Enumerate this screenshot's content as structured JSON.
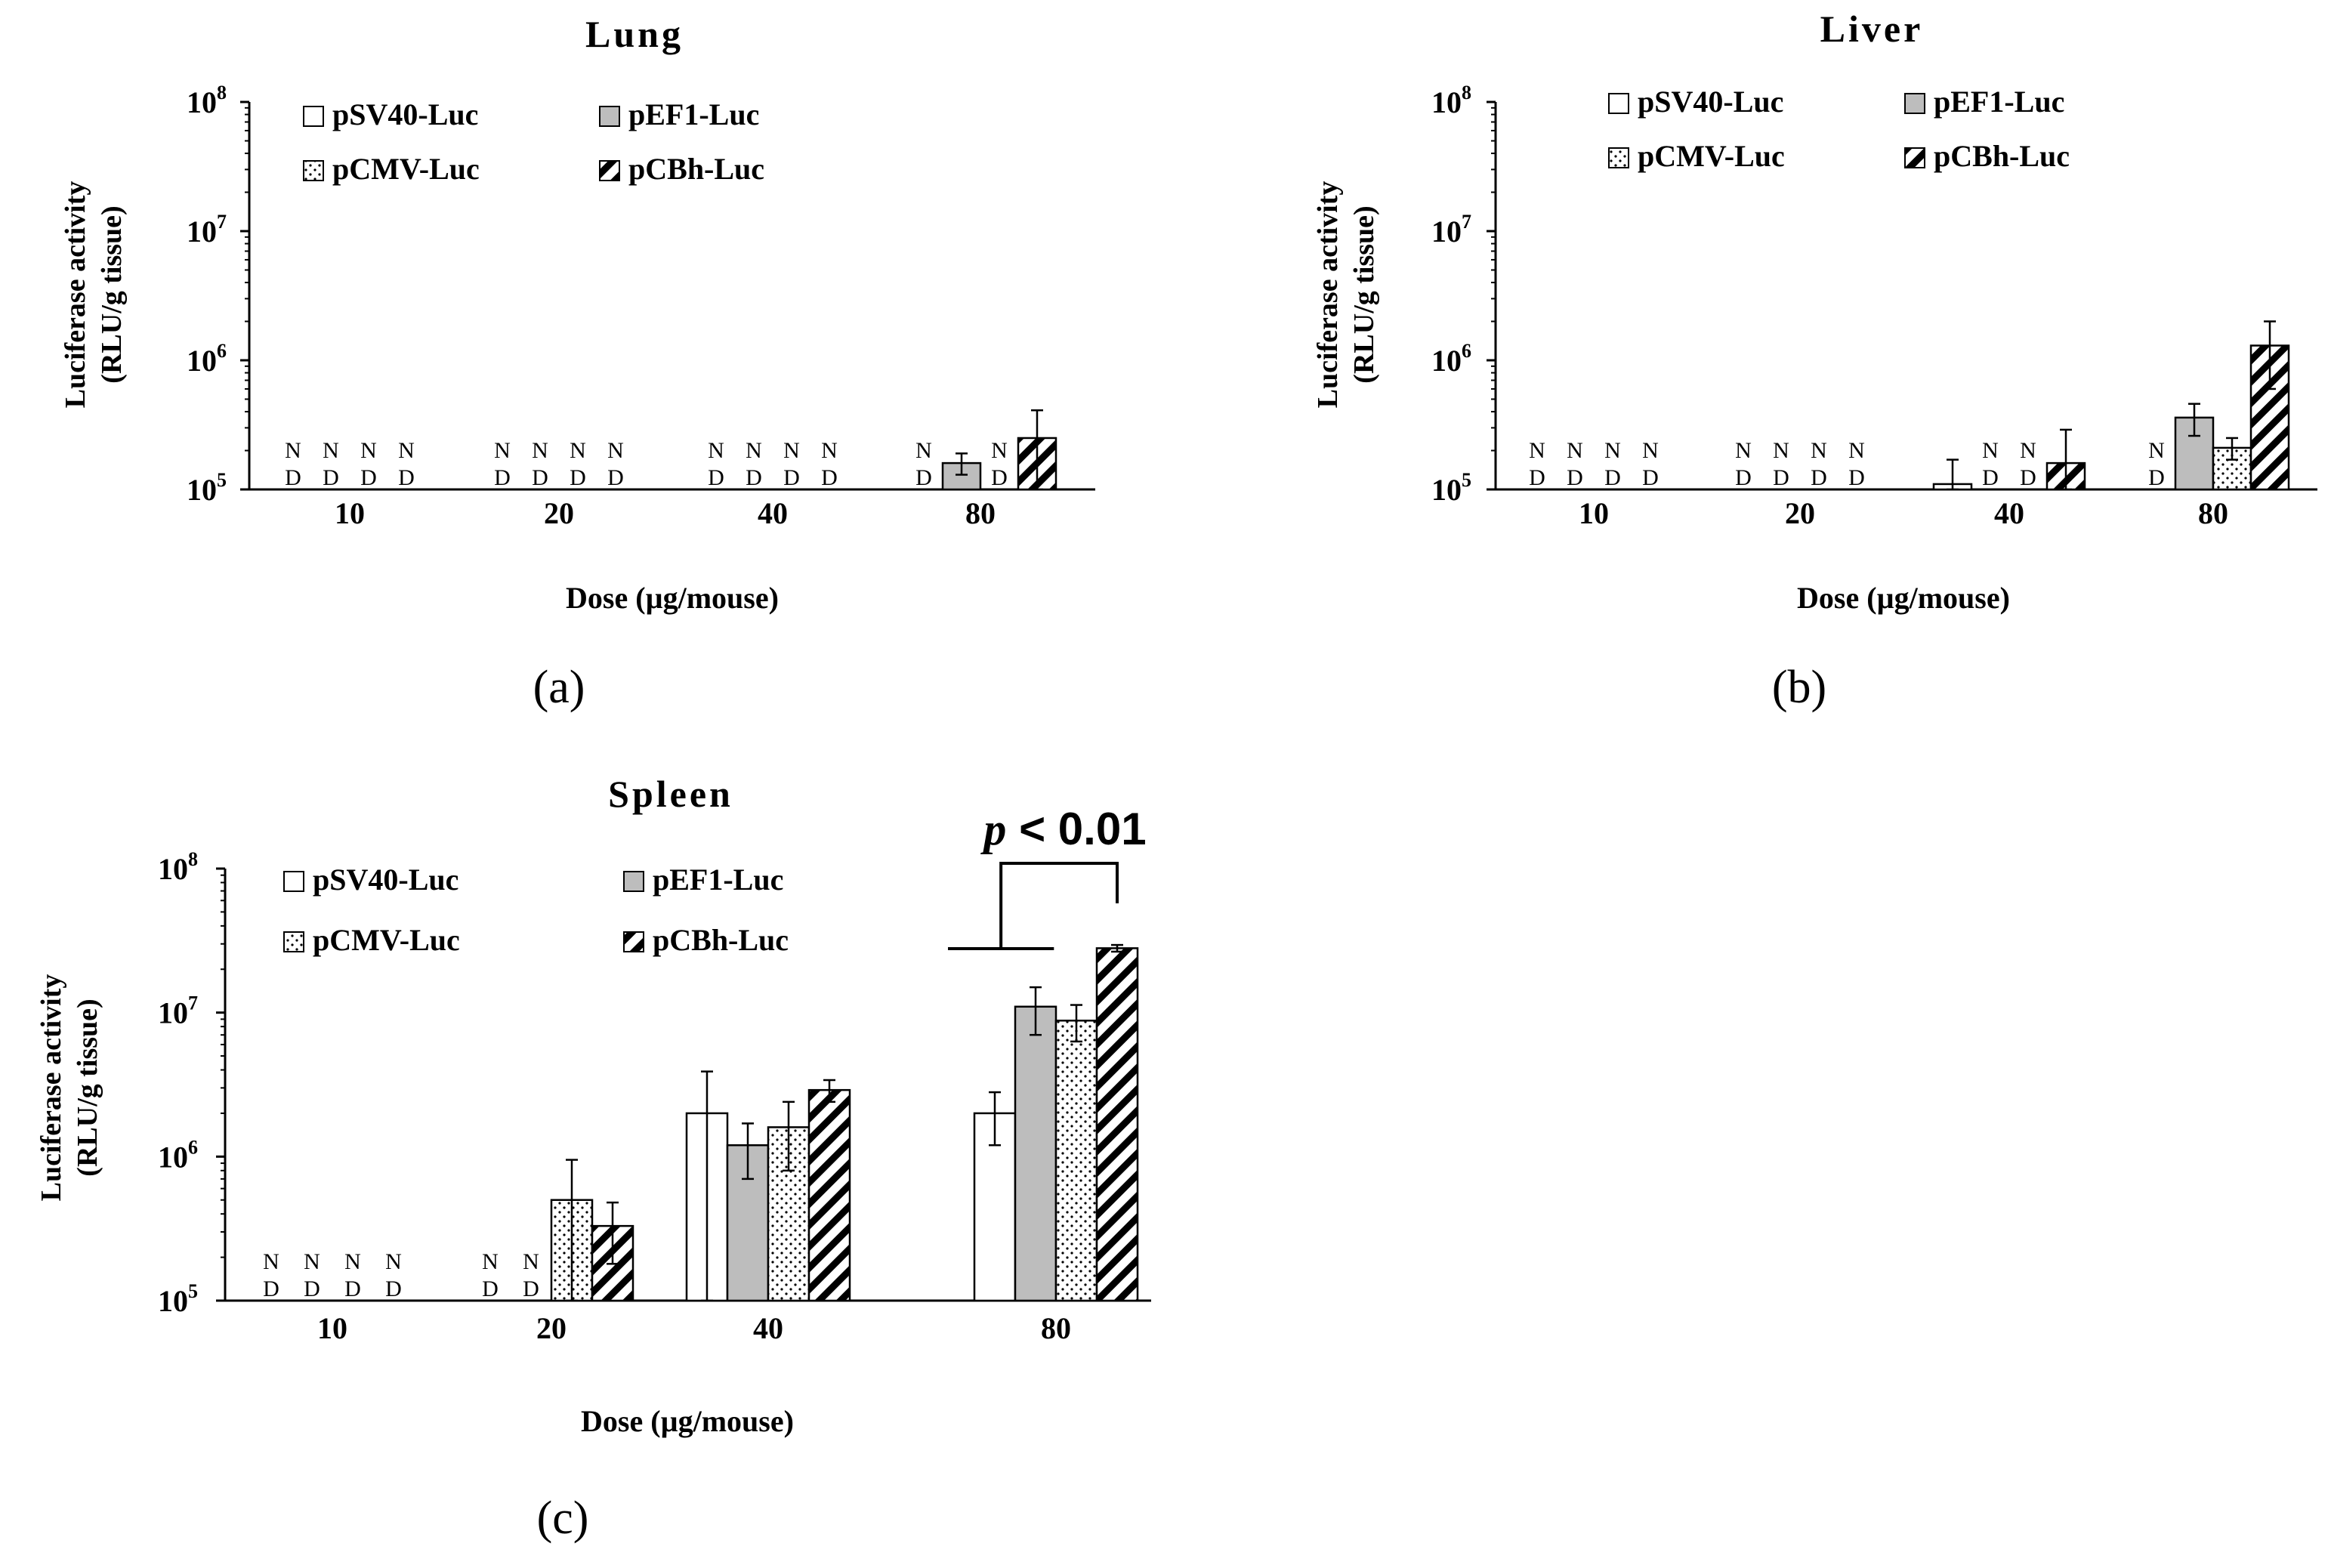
{
  "figure": {
    "legend_patterns": {
      "pSV40-Luc": "white",
      "pEF1-Luc": "gray",
      "pCMV-Luc": "dots",
      "pCBh-Luc": "hatch"
    },
    "colors": {
      "gray": "#bdbdbd",
      "axis": "#000000",
      "background": "#ffffff"
    },
    "nd_label": {
      "n": "N",
      "d": "D"
    },
    "significance": "p < 0.01"
  },
  "chart_data": [
    {
      "type": "bar",
      "panel_label": "(a)",
      "title": "Lung",
      "xlabel": "Dose (µg/mouse)",
      "ylabel_line1": "Luciferase activity",
      "ylabel_line2": "(RLU/g tissue)",
      "yscale": "log",
      "ylim": [
        100000,
        100000000
      ],
      "yticks": [
        {
          "base": "10",
          "exp": "5"
        },
        {
          "base": "10",
          "exp": "6"
        },
        {
          "base": "10",
          "exp": "7"
        },
        {
          "base": "10",
          "exp": "8"
        }
      ],
      "categories": [
        "10",
        "20",
        "40",
        "80"
      ],
      "legend": [
        "pSV40-Luc",
        "pEF1-Luc",
        "pCMV-Luc",
        "pCBh-Luc"
      ],
      "series": [
        {
          "name": "pSV40-Luc",
          "pattern": "white",
          "values": [
            null,
            null,
            null,
            null
          ],
          "errors": [
            null,
            null,
            null,
            null
          ]
        },
        {
          "name": "pEF1-Luc",
          "pattern": "gray",
          "values": [
            null,
            null,
            null,
            160000
          ],
          "errors": [
            null,
            null,
            null,
            30000
          ]
        },
        {
          "name": "pCMV-Luc",
          "pattern": "dots",
          "values": [
            null,
            null,
            null,
            null
          ],
          "errors": [
            null,
            null,
            null,
            null
          ]
        },
        {
          "name": "pCBh-Luc",
          "pattern": "hatch",
          "values": [
            null,
            null,
            null,
            250000
          ],
          "errors": [
            null,
            null,
            null,
            160000
          ]
        }
      ]
    },
    {
      "type": "bar",
      "panel_label": "(b)",
      "title": "Liver",
      "xlabel": "Dose (µg/mouse)",
      "ylabel_line1": "Luciferase activity",
      "ylabel_line2": "(RLU/g tissue)",
      "yscale": "log",
      "ylim": [
        100000,
        100000000
      ],
      "yticks": [
        {
          "base": "10",
          "exp": "5"
        },
        {
          "base": "10",
          "exp": "6"
        },
        {
          "base": "10",
          "exp": "7"
        },
        {
          "base": "10",
          "exp": "8"
        }
      ],
      "categories": [
        "10",
        "20",
        "40",
        "80"
      ],
      "legend": [
        "pSV40-Luc",
        "pEF1-Luc",
        "pCMV-Luc",
        "pCBh-Luc"
      ],
      "series": [
        {
          "name": "pSV40-Luc",
          "pattern": "white",
          "values": [
            null,
            null,
            110000,
            null
          ],
          "errors": [
            null,
            null,
            60000,
            null
          ]
        },
        {
          "name": "pEF1-Luc",
          "pattern": "gray",
          "values": [
            null,
            null,
            null,
            360000
          ],
          "errors": [
            null,
            null,
            null,
            100000
          ]
        },
        {
          "name": "pCMV-Luc",
          "pattern": "dots",
          "values": [
            null,
            null,
            null,
            210000
          ],
          "errors": [
            null,
            null,
            null,
            40000
          ]
        },
        {
          "name": "pCBh-Luc",
          "pattern": "hatch",
          "values": [
            null,
            null,
            160000,
            1300000
          ],
          "errors": [
            null,
            null,
            130000,
            700000
          ]
        }
      ]
    },
    {
      "type": "bar",
      "panel_label": "(c)",
      "title": "Spleen",
      "xlabel": "Dose (µg/mouse)",
      "ylabel_line1": "Luciferase activity",
      "ylabel_line2": "(RLU/g tissue)",
      "yscale": "log",
      "ylim": [
        100000,
        100000000
      ],
      "yticks": [
        {
          "base": "10",
          "exp": "5"
        },
        {
          "base": "10",
          "exp": "6"
        },
        {
          "base": "10",
          "exp": "7"
        },
        {
          "base": "10",
          "exp": "8"
        }
      ],
      "categories": [
        "10",
        "20",
        "40",
        "80"
      ],
      "legend": [
        "pSV40-Luc",
        "pEF1-Luc",
        "pCMV-Luc",
        "pCBh-Luc"
      ],
      "series": [
        {
          "name": "pSV40-Luc",
          "pattern": "white",
          "values": [
            null,
            null,
            2000000,
            2000000
          ],
          "errors": [
            null,
            null,
            1900000,
            800000
          ]
        },
        {
          "name": "pEF1-Luc",
          "pattern": "gray",
          "values": [
            null,
            null,
            1200000,
            11000000
          ],
          "errors": [
            null,
            null,
            500000,
            4000000
          ]
        },
        {
          "name": "pCMV-Luc",
          "pattern": "dots",
          "values": [
            null,
            500000,
            1600000,
            8800000
          ],
          "errors": [
            null,
            450000,
            800000,
            2500000
          ]
        },
        {
          "name": "pCBh-Luc",
          "pattern": "hatch",
          "values": [
            null,
            330000,
            2900000,
            28000000
          ],
          "errors": [
            null,
            150000,
            500000,
            1500000
          ]
        }
      ]
    }
  ]
}
